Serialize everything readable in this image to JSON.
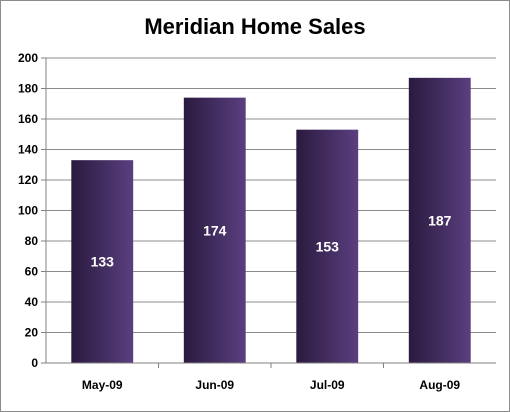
{
  "chart_data": {
    "type": "bar",
    "title": "Meridian Home Sales",
    "categories": [
      "May-09",
      "Jun-09",
      "Jul-09",
      "Aug-09"
    ],
    "values": [
      133,
      174,
      153,
      187
    ],
    "data_labels": [
      "133",
      "174",
      "153",
      "187"
    ],
    "xlabel": "",
    "ylabel": "",
    "ylim": [
      0,
      200
    ],
    "yticks": [
      0,
      20,
      40,
      60,
      80,
      100,
      120,
      140,
      160,
      180,
      200
    ],
    "ytick_labels": [
      "0",
      "20",
      "40",
      "60",
      "80",
      "100",
      "120",
      "140",
      "160",
      "180",
      "200"
    ],
    "grid": true,
    "legend": "none",
    "colors": {
      "bar_dark": "#2a1a3e",
      "bar_light": "#5a3f80",
      "grid": "#8c8c8c",
      "axis": "#808080",
      "data_label": "#ffffff"
    }
  }
}
